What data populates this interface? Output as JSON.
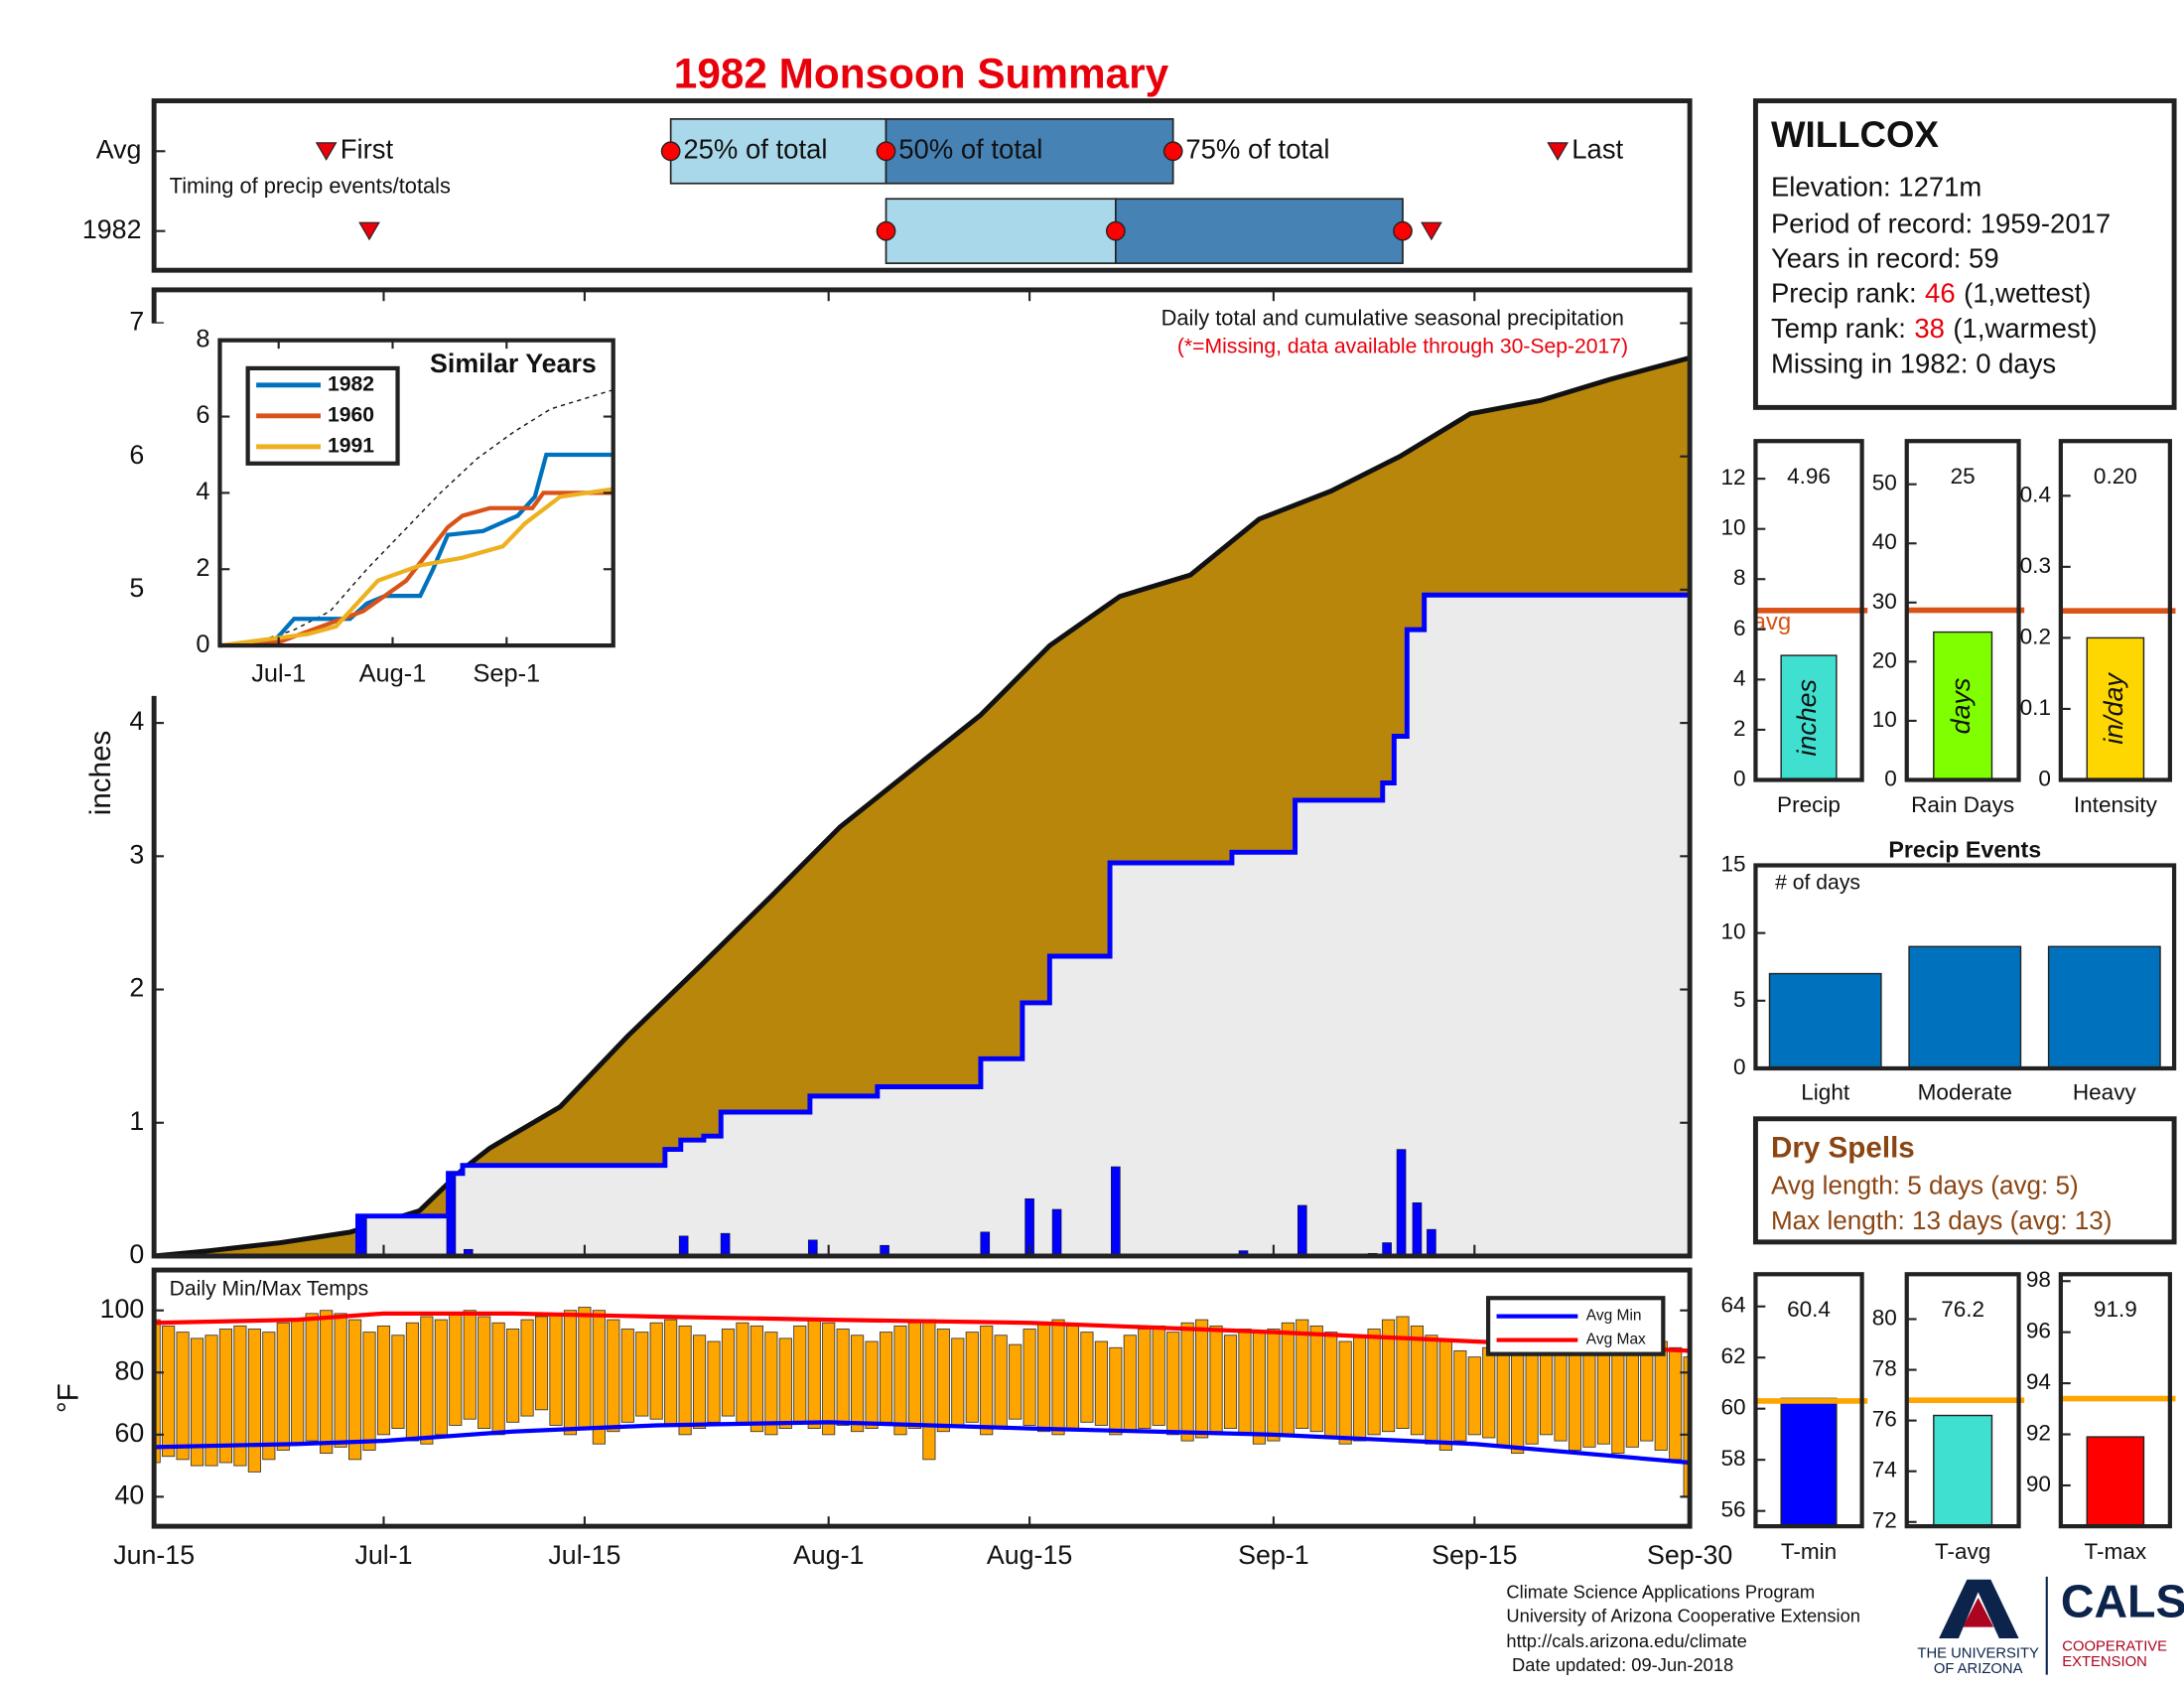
{
  "title": "1982 Monsoon Summary",
  "station": {
    "name": "WILLCOX",
    "lines": [
      "Elevation: 1271m",
      "Period of record: 1959-2017",
      "Years in record: 59"
    ],
    "ranks": [
      {
        "label": "Precip rank:",
        "rank": 46,
        "note": "(1,wettest)"
      },
      {
        "label": "Temp rank:",
        "rank": 38,
        "note": "(1,warmest)"
      }
    ],
    "missing": "Missing in 1982: 0 days"
  },
  "dry_spells": {
    "title": "Dry Spells",
    "lines": [
      "Avg length: 5 days (avg: 5)",
      "Max length: 13 days (avg: 13)"
    ]
  },
  "footer": [
    "Climate Science Applications Program",
    "University of Arizona Cooperative Extension",
    "http://cals.arizona.edu/climate",
    "Date updated: 09-Jun-2018"
  ],
  "logo": {
    "university": [
      "THE UNIVERSITY",
      "OF ARIZONA"
    ],
    "name": "CALS",
    "unit": [
      "COOPERATIVE",
      "EXTENSION"
    ]
  },
  "chart_data": [
    {
      "type": "timing",
      "note": "Timing of precip events/totals",
      "xlim": [
        0,
        107
      ],
      "marker_labels": {
        "first": "First",
        "p25": "25% of total",
        "p50": "50% of total",
        "p75": "75% of total",
        "last": "Last"
      },
      "rows": [
        {
          "name": "Avg",
          "first": 12,
          "p25": 36,
          "p50": 51,
          "p75": 71,
          "last": 97.8
        },
        {
          "name": "1982",
          "first": 15,
          "p25": 51,
          "p50": 67,
          "p75": 87,
          "last": 89
        }
      ]
    },
    {
      "type": "cumulative",
      "note": "Daily total and cumulative seasonal precipitation",
      "missing_note": "(*=Missing, data available through 30-Sep-2017)",
      "ylabel": "inches",
      "xlim": [
        0,
        107
      ],
      "ylim": [
        0,
        7.25
      ],
      "yticks": [
        0,
        1,
        2,
        3,
        4,
        5,
        6,
        7
      ],
      "series": [
        {
          "type": "area",
          "color": "#b8860b",
          "x": [
            0,
            3.9,
            8.8,
            13.7,
            18.5,
            21.5,
            23.4,
            28.3,
            33,
            38,
            43,
            47.8,
            52.7,
            57.6,
            62.4,
            67.3,
            72.2,
            77,
            82,
            86.8,
            91.7,
            96.6,
            101.5,
            107
          ],
          "values": [
            0,
            0.04,
            0.1,
            0.18,
            0.34,
            0.65,
            0.81,
            1.12,
            1.65,
            2.17,
            2.7,
            3.22,
            3.64,
            4.06,
            4.58,
            4.95,
            5.11,
            5.53,
            5.74,
            6,
            6.32,
            6.42,
            6.58,
            6.74
          ]
        },
        {
          "type": "step",
          "color": "#0000ff",
          "x": [
            0,
            14.2,
            20.5,
            21.5,
            35.6,
            36.7,
            38.3,
            39.5,
            45.7,
            50.4,
            57.6,
            60.5,
            62.4,
            66.6,
            75.1,
            79.5,
            85.6,
            86.4,
            87.3,
            88.5,
            107
          ],
          "values": [
            0,
            0.3,
            0.62,
            0.68,
            0.8,
            0.87,
            0.9,
            1.08,
            1.2,
            1.27,
            1.48,
            1.9,
            2.25,
            2.95,
            3.03,
            3.42,
            3.55,
            3.9,
            4.7,
            4.96,
            4.96
          ]
        },
        {
          "type": "bar",
          "color": "#0000ff",
          "x": [
            14.5,
            20.7,
            21.9,
            36.9,
            39.8,
            45.9,
            50.9,
            57.9,
            61,
            62.9,
            67,
            75.9,
            80,
            84.9,
            85.9,
            86.9,
            88,
            89
          ],
          "values": [
            0.3,
            0.6,
            0.05,
            0.15,
            0.17,
            0.12,
            0.08,
            0.18,
            0.43,
            0.35,
            0.67,
            0.04,
            0.38,
            0.02,
            0.1,
            0.8,
            0.4,
            0.2
          ]
        }
      ]
    },
    {
      "type": "line",
      "title": "Similar Years",
      "xlim": [
        0,
        107
      ],
      "ylim": [
        0,
        8
      ],
      "yticks": [
        0,
        2,
        4,
        6,
        8
      ],
      "xticks": [
        {
          "value": 16,
          "label": "Jul-1"
        },
        {
          "value": 47,
          "label": "Aug-1"
        },
        {
          "value": 78,
          "label": "Sep-1"
        }
      ],
      "series": [
        {
          "color": "#111111",
          "dash": true,
          "x": [
            0,
            10,
            20,
            30,
            40,
            50,
            60,
            70,
            80,
            90,
            107
          ],
          "values": [
            0,
            0.1,
            0.4,
            0.9,
            2.0,
            3.0,
            4.0,
            4.9,
            5.6,
            6.2,
            6.7
          ]
        },
        {
          "name": "1982",
          "color": "#0072bd",
          "x": [
            0,
            12.6,
            15.6,
            20.2,
            35.4,
            40,
            45,
            54.5,
            58,
            62,
            71.6,
            81,
            85.7,
            88.8,
            107
          ],
          "values": [
            0,
            0.1,
            0.2,
            0.7,
            0.7,
            1.1,
            1.3,
            1.3,
            2.0,
            2.9,
            3.0,
            3.4,
            3.9,
            5.0,
            5.0
          ]
        },
        {
          "name": "1960",
          "color": "#d95319",
          "x": [
            0,
            16.4,
            22,
            39,
            50.7,
            62,
            66,
            73.5,
            85,
            88,
            107
          ],
          "values": [
            0,
            0.1,
            0.3,
            0.9,
            1.7,
            3.1,
            3.4,
            3.6,
            3.6,
            4.0,
            4.0
          ]
        },
        {
          "name": "1991",
          "color": "#edb120",
          "x": [
            0,
            24,
            31.6,
            43,
            54.5,
            66,
            77,
            83,
            92.6,
            107
          ],
          "values": [
            0,
            0.3,
            0.5,
            1.7,
            2.1,
            2.3,
            2.6,
            3.2,
            3.9,
            4.1
          ]
        }
      ]
    },
    {
      "type": "range",
      "title": "Daily Min/Max Temps",
      "ylabel": "°F",
      "xlim": [
        0,
        107
      ],
      "ylim": [
        30.5,
        113
      ],
      "yticks": [
        40,
        60,
        80,
        100
      ],
      "xticks": [
        {
          "value": 0,
          "label": "Jun-15"
        },
        {
          "value": 16,
          "label": "Jul-1"
        },
        {
          "value": 30,
          "label": "Jul-15"
        },
        {
          "value": 47,
          "label": "Aug-1"
        },
        {
          "value": 61,
          "label": "Aug-15"
        },
        {
          "value": 78,
          "label": "Sep-1"
        },
        {
          "value": 92,
          "label": "Sep-15"
        },
        {
          "value": 107,
          "label": "Sep-30"
        }
      ],
      "bars": {
        "color": "#ffa500",
        "max": [
          97,
          95,
          93,
          91,
          92,
          94,
          95,
          94,
          93,
          96,
          97,
          99,
          100,
          99,
          97,
          93,
          95,
          92,
          96,
          98,
          97,
          99,
          100,
          98,
          96,
          94,
          97,
          98,
          99,
          100,
          101,
          100,
          97,
          94,
          93,
          96,
          97,
          95,
          92,
          90,
          94,
          96,
          95,
          93,
          91,
          95,
          97,
          96,
          94,
          92,
          90,
          93,
          95,
          96,
          97,
          94,
          91,
          93,
          95,
          92,
          89,
          94,
          96,
          97,
          95,
          93,
          90,
          88,
          92,
          94,
          95,
          93,
          96,
          97,
          95,
          92,
          94,
          93,
          94,
          96,
          97,
          95,
          93,
          90,
          92,
          94,
          97,
          98,
          95,
          92,
          90,
          87,
          85,
          88,
          90,
          92,
          94,
          93,
          91,
          88,
          86,
          89,
          91,
          93,
          92,
          90,
          88,
          85
        ],
        "min": [
          51,
          53,
          52,
          50,
          50,
          51,
          50,
          48,
          52,
          55,
          57,
          58,
          54,
          56,
          52,
          55,
          60,
          62,
          58,
          57,
          60,
          63,
          65,
          62,
          60,
          64,
          66,
          68,
          63,
          60,
          62,
          57,
          61,
          64,
          66,
          65,
          63,
          60,
          62,
          64,
          66,
          63,
          61,
          60,
          62,
          64,
          62,
          60,
          63,
          61,
          62,
          64,
          60,
          62,
          52,
          61,
          63,
          64,
          60,
          62,
          65,
          63,
          61,
          60,
          62,
          64,
          63,
          60,
          61,
          62,
          63,
          60,
          58,
          59,
          61,
          62,
          60,
          57,
          58,
          60,
          62,
          61,
          59,
          57,
          58,
          60,
          61,
          62,
          60,
          57,
          55,
          58,
          60,
          59,
          56,
          54,
          57,
          60,
          58,
          55,
          56,
          57,
          54,
          56,
          58,
          55,
          52,
          40
        ]
      },
      "series": [
        {
          "name": "Avg Min",
          "color": "#0000ff",
          "x": [
            0,
            10,
            16,
            25,
            35,
            47,
            61,
            78,
            92,
            107
          ],
          "values": [
            56,
            57,
            58,
            61,
            63,
            64,
            62,
            60,
            57,
            51
          ]
        },
        {
          "name": "Avg Max",
          "color": "#ff0000",
          "x": [
            0,
            10,
            16,
            25,
            35,
            47,
            61,
            78,
            92,
            107
          ],
          "values": [
            96,
            97,
            99,
            99,
            98,
            97,
            96,
            93,
            90,
            87
          ]
        }
      ]
    },
    {
      "type": "gauge",
      "category": "Precip",
      "unit": "inches",
      "value": 4.96,
      "average": 6.75,
      "average_label": "avg",
      "ylim": [
        0,
        13.5
      ],
      "yticks": [
        0,
        2,
        4,
        6,
        8,
        10,
        12
      ],
      "color": "#40e0d0",
      "average_color": "#d95319"
    },
    {
      "type": "gauge",
      "category": "Rain Days",
      "unit": "days",
      "value": 25,
      "average": 28.7,
      "ylim": [
        0,
        57.3
      ],
      "yticks": [
        0,
        10,
        20,
        30,
        40,
        50
      ],
      "color": "#7fff00",
      "average_color": "#d95319"
    },
    {
      "type": "gauge",
      "category": "Intensity",
      "unit": "in/day",
      "value": 0.2,
      "value_label": "0.20",
      "average": 0.238,
      "ylim": [
        0,
        0.477
      ],
      "yticks": [
        0,
        0.1,
        0.2,
        0.3,
        0.4
      ],
      "color": "#ffd700",
      "average_color": "#d95319"
    },
    {
      "type": "bar",
      "title": "Precip Events",
      "ylabel": "# of days",
      "categories": [
        "Light",
        "Moderate",
        "Heavy"
      ],
      "values": [
        7,
        9,
        9
      ],
      "ylim": [
        0,
        15
      ],
      "yticks": [
        0,
        5,
        10,
        15
      ],
      "color": "#0072bd"
    },
    {
      "type": "gauge",
      "category": "T-min",
      "value": 60.4,
      "average": 60.3,
      "ylim": [
        55.4,
        65.26
      ],
      "yticks": [
        56,
        58,
        60,
        62,
        64
      ],
      "color": "#0000ff",
      "average_color": "#ffa500"
    },
    {
      "type": "gauge",
      "category": "T-avg",
      "value": 76.2,
      "average": 76.8,
      "ylim": [
        71.83,
        81.77
      ],
      "yticks": [
        72,
        74,
        76,
        78,
        80
      ],
      "color": "#40e0d0",
      "average_color": "#ffa500"
    },
    {
      "type": "gauge",
      "category": "T-max",
      "value": 91.9,
      "average": 93.4,
      "ylim": [
        88.4,
        98.27
      ],
      "yticks": [
        90,
        92,
        94,
        96,
        98
      ],
      "color": "#ff0000",
      "average_color": "#ffa500"
    }
  ]
}
